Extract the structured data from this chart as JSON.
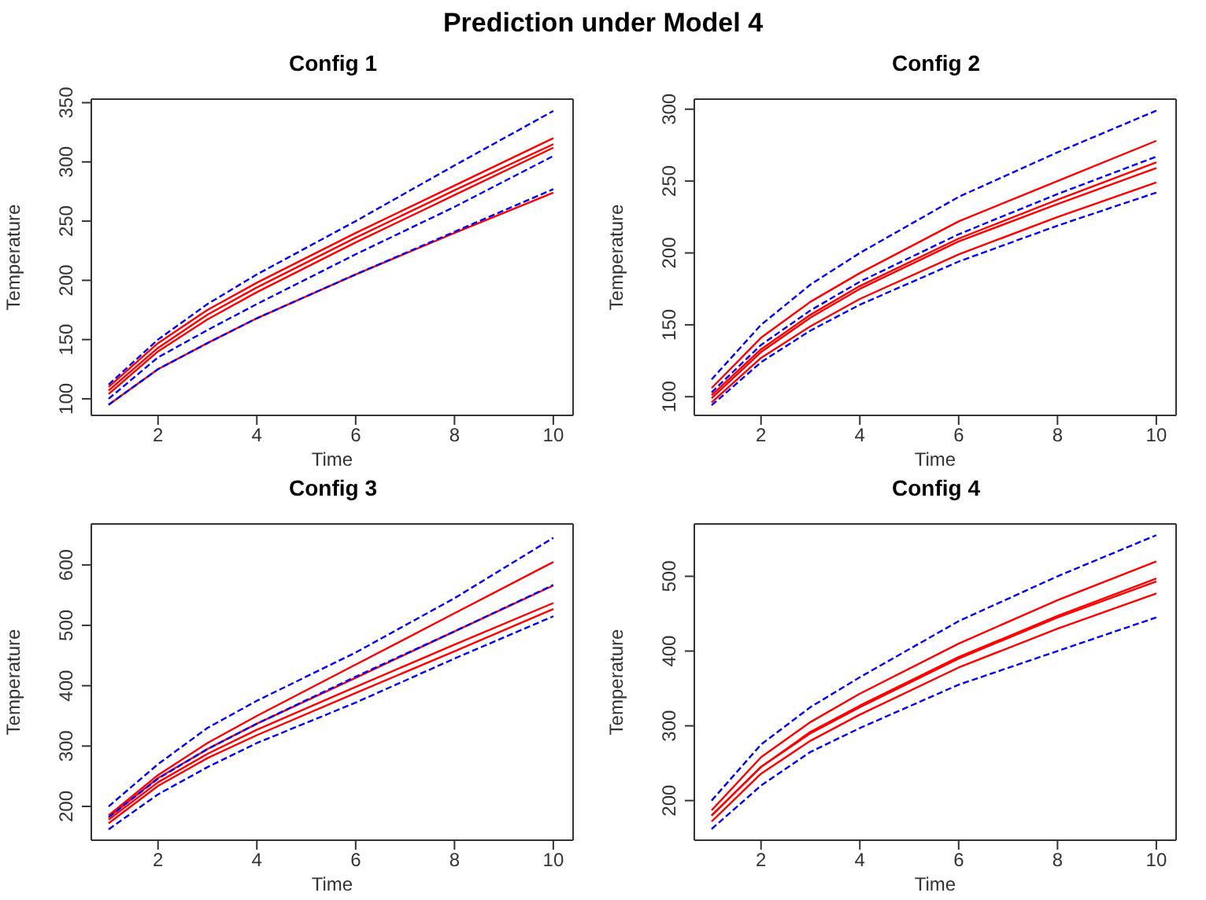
{
  "chart_data": [
    {
      "type": "other",
      "title": "Prediction under Model 4"
    },
    {
      "type": "line",
      "title": "Config 1",
      "xlabel": "Time",
      "ylabel": "Temperature",
      "x": [
        1,
        2,
        3,
        4,
        6,
        8,
        10
      ],
      "xlim": [
        0.65,
        10.4
      ],
      "xticks": [
        2,
        4,
        6,
        8,
        10
      ],
      "ylim": [
        86,
        353
      ],
      "yticks": [
        100,
        150,
        200,
        250,
        300,
        350
      ],
      "grid": false,
      "legend": false,
      "marker": "none",
      "series": [
        {
          "color": "#ff0000",
          "line_style": "solid",
          "values": [
            110,
            147,
            175,
            198,
            240,
            280,
            320
          ]
        },
        {
          "color": "#ff0000",
          "line_style": "solid",
          "values": [
            107,
            143,
            171,
            194,
            236,
            276,
            315
          ]
        },
        {
          "color": "#ff0000",
          "line_style": "solid",
          "values": [
            104,
            140,
            167,
            190,
            232,
            272,
            312
          ]
        },
        {
          "color": "#ff0000",
          "line_style": "solid",
          "values": [
            95,
            125,
            147,
            168,
            205,
            240,
            274
          ]
        },
        {
          "color": "#0000ff",
          "line_style": "dashed",
          "values": [
            112,
            150,
            180,
            205,
            250,
            297,
            343
          ]
        },
        {
          "color": "#0000ff",
          "line_style": "dashed",
          "values": [
            100,
            135,
            158,
            180,
            222,
            262,
            305
          ]
        },
        {
          "color": "#0000ff",
          "line_style": "dashed",
          "values": [
            95,
            125,
            147,
            168,
            205,
            241,
            277
          ]
        }
      ]
    },
    {
      "type": "line",
      "title": "Config 2",
      "xlabel": "Time",
      "ylabel": "Temperature",
      "x": [
        1,
        2,
        3,
        4,
        6,
        8,
        10
      ],
      "xlim": [
        0.65,
        10.4
      ],
      "xticks": [
        2,
        4,
        6,
        8,
        10
      ],
      "ylim": [
        87,
        307
      ],
      "yticks": [
        100,
        150,
        200,
        250,
        300
      ],
      "grid": false,
      "legend": false,
      "marker": "none",
      "series": [
        {
          "color": "#ff0000",
          "line_style": "solid",
          "values": [
            106,
            141,
            166,
            186,
            222,
            250,
            278
          ]
        },
        {
          "color": "#ff0000",
          "line_style": "solid",
          "values": [
            101,
            133,
            157,
            177,
            210,
            237,
            263
          ]
        },
        {
          "color": "#ff0000",
          "line_style": "solid",
          "values": [
            99,
            131,
            155,
            175,
            208,
            234,
            259
          ]
        },
        {
          "color": "#ff0000",
          "line_style": "solid",
          "values": [
            96,
            127,
            149,
            168,
            199,
            225,
            249
          ]
        },
        {
          "color": "#0000ff",
          "line_style": "dashed",
          "values": [
            112,
            150,
            178,
            200,
            239,
            270,
            299
          ]
        },
        {
          "color": "#0000ff",
          "line_style": "dashed",
          "values": [
            103,
            136,
            160,
            180,
            213,
            241,
            267
          ]
        },
        {
          "color": "#0000ff",
          "line_style": "dashed",
          "values": [
            94,
            124,
            146,
            164,
            194,
            219,
            242
          ]
        }
      ]
    },
    {
      "type": "line",
      "title": "Config 3",
      "xlabel": "Time",
      "ylabel": "Temperature",
      "x": [
        1,
        2,
        3,
        4,
        6,
        8,
        10
      ],
      "xlim": [
        0.65,
        10.4
      ],
      "xticks": [
        2,
        4,
        6,
        8,
        10
      ],
      "ylim": [
        144,
        668
      ],
      "yticks": [
        200,
        300,
        400,
        500,
        600
      ],
      "grid": false,
      "legend": false,
      "marker": "none",
      "series": [
        {
          "color": "#ff0000",
          "line_style": "solid",
          "values": [
            185,
            252,
            305,
            350,
            435,
            520,
            605
          ]
        },
        {
          "color": "#ff0000",
          "line_style": "solid",
          "values": [
            182,
            247,
            295,
            337,
            413,
            490,
            566
          ]
        },
        {
          "color": "#ff0000",
          "line_style": "solid",
          "values": [
            178,
            240,
            287,
            327,
            398,
            468,
            537
          ]
        },
        {
          "color": "#ff0000",
          "line_style": "solid",
          "values": [
            172,
            234,
            280,
            318,
            388,
            457,
            527
          ]
        },
        {
          "color": "#0000ff",
          "line_style": "dashed",
          "values": [
            200,
            270,
            330,
            375,
            455,
            545,
            645
          ]
        },
        {
          "color": "#0000ff",
          "line_style": "dashed",
          "values": [
            182,
            246,
            295,
            337,
            415,
            490,
            567
          ]
        },
        {
          "color": "#0000ff",
          "line_style": "dashed",
          "values": [
            162,
            220,
            265,
            305,
            372,
            445,
            515
          ]
        }
      ]
    },
    {
      "type": "line",
      "title": "Config 4",
      "xlabel": "Time",
      "ylabel": "Temperature",
      "x": [
        1,
        2,
        3,
        4,
        6,
        8,
        10
      ],
      "xlim": [
        0.65,
        10.4
      ],
      "xticks": [
        2,
        4,
        6,
        8,
        10
      ],
      "ylim": [
        147,
        570
      ],
      "yticks": [
        200,
        300,
        400,
        500
      ],
      "grid": false,
      "legend": false,
      "marker": "none",
      "series": [
        {
          "color": "#ff0000",
          "line_style": "solid",
          "values": [
            187,
            258,
            305,
            343,
            410,
            468,
            520
          ]
        },
        {
          "color": "#ff0000",
          "line_style": "solid",
          "values": [
            180,
            245,
            292,
            327,
            392,
            447,
            497
          ]
        },
        {
          "color": "#ff0000",
          "line_style": "solid",
          "values": [
            180,
            245,
            290,
            325,
            390,
            445,
            493
          ]
        },
        {
          "color": "#ff0000",
          "line_style": "solid",
          "values": [
            172,
            236,
            280,
            315,
            378,
            430,
            477
          ]
        },
        {
          "color": "#0000ff",
          "line_style": "dashed",
          "values": [
            200,
            275,
            325,
            365,
            440,
            500,
            555
          ]
        },
        {
          "color": "#0000ff",
          "line_style": "dashed",
          "values": [
            162,
            220,
            265,
            297,
            355,
            400,
            445
          ]
        }
      ]
    }
  ]
}
